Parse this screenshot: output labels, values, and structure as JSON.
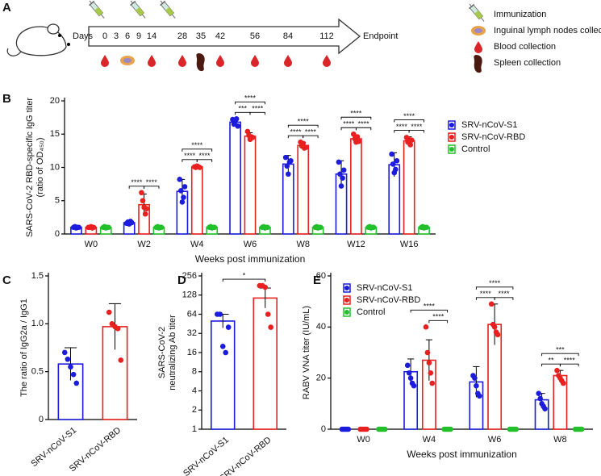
{
  "panel_labels": [
    "A",
    "B",
    "C",
    "D",
    "E"
  ],
  "timeline": {
    "days_label": "Days",
    "days": [
      0,
      3,
      6,
      9,
      14,
      28,
      35,
      42,
      56,
      84,
      112
    ],
    "endpoint": "Endpoint",
    "legend": [
      "Immunization",
      "Inguinal lymph nodes collection",
      "Blood collection",
      "Spleen collection"
    ]
  },
  "chart_data": [
    {
      "type": "bar",
      "ylabel": [
        "SARS-CoV-2 RBD-specific IgG titer",
        "(ratio of OD₄₅₀)"
      ],
      "xlabel": "Weeks post immunization",
      "categories": [
        "W0",
        "W2",
        "W4",
        "W6",
        "W8",
        "W12",
        "W16"
      ],
      "ylim": [
        0,
        20
      ],
      "yticks": [
        0,
        5,
        10,
        15,
        20
      ],
      "legend": "right",
      "series": [
        {
          "name": "SRV-nCoV-S1",
          "color": "#1c1cdc",
          "values": [
            1.0,
            1.7,
            6.4,
            16.8,
            10.5,
            9.0,
            10.4
          ],
          "errors": [
            0.1,
            0.2,
            1.8,
            0.5,
            1.3,
            2.0,
            1.8
          ],
          "points": [
            [
              1,
              1.1,
              0.9,
              1,
              1
            ],
            [
              1.6,
              1.8,
              1.5,
              1.9,
              1.7
            ],
            [
              8.2,
              6.5,
              4.8,
              5.5,
              7.1
            ],
            [
              17.2,
              16.5,
              16.9,
              17.3,
              16.2
            ],
            [
              11.5,
              10.2,
              9.0,
              10.8,
              11.0
            ],
            [
              10.8,
              9.0,
              7.2,
              8.4,
              9.6
            ],
            [
              12.0,
              10.5,
              9.2,
              9.7,
              11.0
            ]
          ]
        },
        {
          "name": "SRV-nCoV-RBD",
          "color": "#e8201f",
          "values": [
            1.0,
            4.4,
            10.1,
            14.7,
            13.3,
            14.3,
            14.0
          ],
          "errors": [
            0.1,
            1.6,
            0.1,
            0.5,
            0.5,
            0.6,
            0.6
          ],
          "points": [
            [
              1,
              1,
              1.1,
              0.9,
              1
            ],
            [
              6.2,
              5.0,
              4.0,
              3.0,
              3.8
            ],
            [
              10.1,
              10.0,
              10.2,
              10.1,
              10.0
            ],
            [
              15.4,
              14.8,
              14.2,
              14.6,
              14.5
            ],
            [
              13.8,
              13.2,
              13.6,
              12.9,
              13.0
            ],
            [
              15.0,
              14.3,
              13.8,
              14.6,
              13.9
            ],
            [
              14.5,
              13.8,
              14.2,
              13.4,
              14.1
            ]
          ]
        },
        {
          "name": "Control",
          "color": "#22c02a",
          "values": [
            1.0,
            1.0,
            1.0,
            1.0,
            1.0,
            1.0,
            1.0
          ],
          "errors": [
            0.1,
            0.1,
            0.1,
            0.1,
            0.1,
            0.1,
            0.1
          ],
          "points": [
            [
              1,
              1.1,
              0.9,
              1,
              1
            ],
            [
              1,
              1.1,
              0.9,
              1,
              1
            ],
            [
              1,
              1.1,
              0.9,
              1,
              1
            ],
            [
              1,
              1.1,
              0.9,
              1,
              1
            ],
            [
              1,
              1.1,
              0.9,
              1,
              1
            ],
            [
              1,
              1.1,
              0.9,
              1,
              1
            ],
            [
              1,
              1.1,
              0.9,
              1,
              1
            ]
          ]
        }
      ],
      "significance": [
        {
          "label": "****",
          "category": 1,
          "groups": [
            0,
            1
          ]
        },
        {
          "label": "****",
          "category": 1,
          "groups": [
            1,
            2
          ]
        },
        {
          "label": "****",
          "category": 2,
          "groups": [
            0,
            1
          ]
        },
        {
          "label": "****",
          "category": 2,
          "groups": [
            1,
            2
          ]
        },
        {
          "label": "****",
          "category": 2,
          "groups": [
            0,
            2
          ]
        },
        {
          "label": "***",
          "category": 3,
          "groups": [
            0,
            1
          ]
        },
        {
          "label": "****",
          "category": 3,
          "groups": [
            1,
            2
          ]
        },
        {
          "label": "****",
          "category": 3,
          "groups": [
            0,
            2
          ]
        },
        {
          "label": "****",
          "category": 4,
          "groups": [
            0,
            1
          ]
        },
        {
          "label": "****",
          "category": 4,
          "groups": [
            1,
            2
          ]
        },
        {
          "label": "****",
          "category": 4,
          "groups": [
            0,
            2
          ]
        },
        {
          "label": "****",
          "category": 5,
          "groups": [
            0,
            1
          ]
        },
        {
          "label": "****",
          "category": 5,
          "groups": [
            1,
            2
          ]
        },
        {
          "label": "****",
          "category": 5,
          "groups": [
            0,
            2
          ]
        },
        {
          "label": "****",
          "category": 6,
          "groups": [
            0,
            1
          ]
        },
        {
          "label": "****",
          "category": 6,
          "groups": [
            1,
            2
          ]
        },
        {
          "label": "****",
          "category": 6,
          "groups": [
            0,
            2
          ]
        }
      ]
    },
    {
      "type": "bar",
      "ylabel": [
        "The ratio of IgG2a / IgG1"
      ],
      "categories": [
        "SRV-nCoV-S1",
        "SRV-nCoV-RBD"
      ],
      "colors": [
        "#1c1cdc",
        "#e8201f"
      ],
      "values": [
        0.58,
        0.97
      ],
      "errors": [
        0.17,
        0.24
      ],
      "points": [
        [
          0.7,
          0.63,
          0.55,
          0.47,
          0.38
        ],
        [
          1.12,
          1.0,
          0.97,
          0.95,
          0.62
        ]
      ],
      "ylim": [
        0,
        1.5
      ],
      "yticks": [
        0,
        0.5,
        {
          "value": 1,
          "label": "1.0"
        },
        1.5
      ]
    },
    {
      "type": "bar",
      "ylabel": [
        "SARS-CoV-2",
        "neutralizing Ab titer"
      ],
      "yscale": "log",
      "categories": [
        "SRV-nCoV-S1",
        "SRV-nCoV-RBD"
      ],
      "colors": [
        "#1c1cdc",
        "#e8201f"
      ],
      "values": [
        50,
        115
      ],
      "errors": [
        14,
        50
      ],
      "points": [
        [
          64,
          64,
          20,
          16,
          40
        ],
        [
          180,
          180,
          170,
          64,
          40
        ]
      ],
      "ylim": [
        1,
        256
      ],
      "yticks": [
        1,
        2,
        4,
        8,
        16,
        32,
        64,
        128,
        256
      ],
      "significance": [
        {
          "label": "*",
          "groups": [
            0,
            1
          ]
        }
      ]
    },
    {
      "type": "bar",
      "ylabel": [
        "RABV VNA titer (IU/mL)"
      ],
      "xlabel": "Weeks post immunization",
      "categories": [
        "W0",
        "W4",
        "W6",
        "W8"
      ],
      "ylim": [
        0,
        60
      ],
      "yticks": [
        0,
        20,
        40,
        60
      ],
      "legend": "upper left",
      "series": [
        {
          "name": "SRV-nCoV-S1",
          "color": "#1c1cdc",
          "values": [
            0,
            22.5,
            18.5,
            11.5
          ],
          "errors": [
            0,
            5,
            6,
            2.5
          ],
          "points": [
            [
              0,
              0,
              0,
              0,
              0
            ],
            [
              25,
              22,
              20,
              18,
              17
            ],
            [
              21,
              20,
              17,
              14,
              13
            ],
            [
              14,
              12,
              10,
              9,
              8
            ]
          ]
        },
        {
          "name": "SRV-nCoV-RBD",
          "color": "#e8201f",
          "values": [
            0,
            27,
            41,
            21
          ],
          "errors": [
            0,
            8,
            8,
            2
          ],
          "points": [
            [
              0,
              0,
              0,
              0,
              0
            ],
            [
              40,
              30,
              26,
              22,
              18
            ],
            [
              49,
              41,
              40,
              38,
              37
            ],
            [
              23,
              21,
              20,
              19,
              18
            ]
          ]
        },
        {
          "name": "Control",
          "color": "#22c02a",
          "values": [
            0,
            0,
            0,
            0
          ],
          "errors": [
            0,
            0,
            0,
            0
          ],
          "points": [
            [
              0,
              0,
              0,
              0,
              0
            ],
            [
              0,
              0,
              0,
              0,
              0
            ],
            [
              0,
              0,
              0,
              0,
              0
            ],
            [
              0,
              0,
              0,
              0,
              0
            ]
          ]
        }
      ],
      "significance": [
        {
          "label": "****",
          "category": 1,
          "groups": [
            1,
            2
          ]
        },
        {
          "label": "****",
          "category": 1,
          "groups": [
            0,
            2
          ]
        },
        {
          "label": "****",
          "category": 2,
          "groups": [
            0,
            1
          ]
        },
        {
          "label": "****",
          "category": 2,
          "groups": [
            1,
            2
          ]
        },
        {
          "label": "****",
          "category": 2,
          "groups": [
            0,
            2
          ]
        },
        {
          "label": "**",
          "category": 3,
          "groups": [
            0,
            1
          ]
        },
        {
          "label": "****",
          "category": 3,
          "groups": [
            1,
            2
          ]
        },
        {
          "label": "***",
          "category": 3,
          "groups": [
            0,
            2
          ]
        }
      ]
    }
  ]
}
